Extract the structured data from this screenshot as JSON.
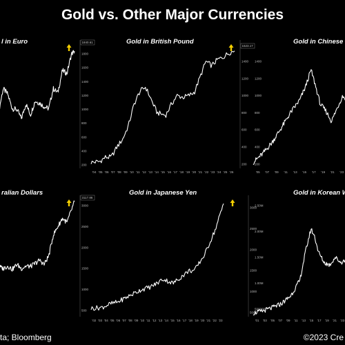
{
  "page": {
    "title": "Gold vs. Other Major Currencies",
    "source": "ta; Bloomberg",
    "copyright": "©2023 Cre"
  },
  "colors": {
    "background": "#000000",
    "line": "#ffffff",
    "arrow": "#f5d000"
  },
  "chart_data": [
    {
      "type": "line",
      "title": "l in Euro",
      "x_tick_labels": [],
      "y_ticks": [
        200,
        400,
        600,
        800,
        1000,
        1200,
        1400,
        1600,
        1800
      ],
      "ylim": [
        150,
        2000
      ],
      "last_value_label": "1840.61",
      "x": [
        0,
        6,
        12,
        18,
        24,
        30,
        36,
        42,
        48,
        54,
        60,
        66,
        72,
        78,
        84,
        90,
        96,
        100
      ],
      "values": [
        960,
        1300,
        1220,
        1010,
        1000,
        870,
        1080,
        920,
        1120,
        1090,
        1040,
        1010,
        1300,
        1240,
        1560,
        1520,
        1800,
        1840
      ]
    },
    {
      "type": "line",
      "title": "Gold in British Pound",
      "x_tick_labels": [
        "'04",
        "'05",
        "'06",
        "'07",
        "'08",
        "'09",
        "'10",
        "'11",
        "'12",
        "'13",
        "'14",
        "'15",
        "'16",
        "'17",
        "'18",
        "'19",
        "'20",
        "'21",
        "'22",
        "'23",
        "'24",
        "'25",
        "'26"
      ],
      "y_ticks": [
        200,
        400,
        600,
        800,
        1000,
        1200,
        1400
      ],
      "ylim": [
        150,
        1650
      ],
      "last_value_label": "1523.17",
      "x": [
        0,
        6,
        10,
        14,
        18,
        22,
        26,
        30,
        34,
        38,
        42,
        46,
        50,
        52,
        56,
        60,
        64,
        68,
        72,
        76,
        80,
        84,
        88,
        92,
        96,
        100
      ],
      "values": [
        220,
        230,
        280,
        280,
        400,
        490,
        650,
        900,
        1050,
        1100,
        950,
        800,
        780,
        770,
        900,
        1000,
        980,
        1000,
        1040,
        1220,
        1400,
        1350,
        1420,
        1450,
        1500,
        1523
      ]
    },
    {
      "type": "line",
      "title": "Gold in Chinese",
      "x_tick_labels": [
        "'05",
        "'07",
        "'09",
        "'11",
        "'13",
        "'15",
        "'17",
        "'19",
        "'21",
        "'23"
      ],
      "y_ticks": [
        200,
        400,
        600,
        800,
        1000,
        1200,
        1400
      ],
      "ylim": [
        150,
        1650
      ],
      "last_value_label": "",
      "x": [
        0,
        10,
        20,
        30,
        40,
        50,
        56,
        62,
        66,
        72,
        78,
        84,
        90,
        96,
        100
      ],
      "values": [
        220,
        320,
        450,
        620,
        800,
        950,
        1100,
        1300,
        1150,
        900,
        820,
        700,
        850,
        1000,
        950
      ]
    },
    {
      "type": "line",
      "title": "ralian Dollars",
      "x_tick_labels": [],
      "y_ticks": [
        500,
        1000,
        1500,
        2000,
        2500,
        3000
      ],
      "ylim": [
        350,
        3250
      ],
      "last_value_label": "3117.86",
      "x": [
        0,
        6,
        12,
        18,
        24,
        30,
        36,
        42,
        48,
        54,
        60,
        66,
        72,
        78,
        84,
        90,
        96,
        100
      ],
      "values": [
        1550,
        1500,
        1560,
        1480,
        1600,
        1500,
        1560,
        1550,
        1620,
        1700,
        1600,
        1800,
        2300,
        2500,
        2700,
        2600,
        2900,
        3100
      ]
    },
    {
      "type": "line",
      "title": "Gold in Japanese Yen",
      "x_tick_labels": [
        "'02",
        "'03",
        "'04",
        "'05",
        "'06",
        "'07",
        "'08",
        "'09",
        "'10",
        "'11",
        "'12",
        "'13",
        "'14",
        "'15",
        "'16",
        "'17",
        "'18",
        "'19",
        "'20",
        "'21",
        "'22",
        "'23"
      ],
      "y_ticks": [
        500,
        1000,
        1500,
        2000,
        2500,
        3000
      ],
      "ylim": [
        400,
        3300
      ],
      "last_value_label": "",
      "x": [
        0,
        8,
        14,
        20,
        26,
        32,
        38,
        44,
        50,
        54,
        58,
        62,
        66,
        70,
        74,
        78,
        82,
        86,
        90,
        94,
        98,
        100
      ],
      "values": [
        600,
        620,
        700,
        750,
        850,
        950,
        1050,
        1100,
        1200,
        1300,
        1250,
        1200,
        1300,
        1400,
        1500,
        1500,
        1700,
        1900,
        2200,
        2500,
        2900,
        3100
      ]
    },
    {
      "type": "line",
      "title": "Gold in Korean W",
      "x_tick_labels": [
        "'01",
        "'03",
        "'05",
        "'07",
        "'09",
        "'11",
        "'13",
        "'15",
        "'17",
        "'19",
        "'21",
        "'23"
      ],
      "y_ticks": [
        500000,
        1000000,
        1500000,
        2000000,
        2500000
      ],
      "y_tick_labels": [
        "500000",
        "1.00M",
        "1.50M",
        "2.00M",
        "2.50M"
      ],
      "ylim": [
        350000,
        2700000
      ],
      "last_value_label": "",
      "x": [
        0,
        10,
        20,
        30,
        40,
        50,
        56,
        62,
        66,
        70,
        76,
        82,
        88,
        94,
        100
      ],
      "values": [
        420000,
        460000,
        520000,
        600000,
        750000,
        1050000,
        1600000,
        2050000,
        1900000,
        1600000,
        1400000,
        1350000,
        1500000,
        1400000,
        1450000
      ]
    }
  ]
}
